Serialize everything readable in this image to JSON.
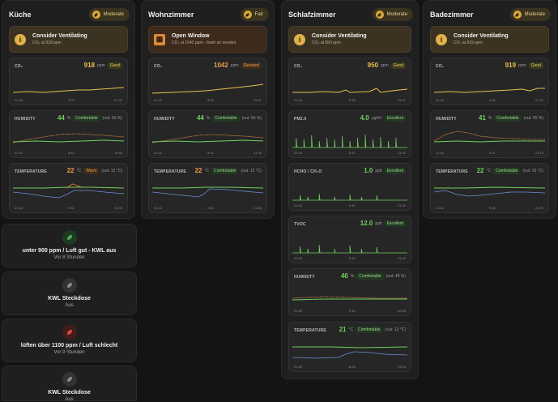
{
  "rooms": [
    {
      "name": "Küche",
      "badge": "Moderate",
      "alert": {
        "title": "Consider Ventilating",
        "sub": "CO₂ at 918 ppm"
      },
      "co2": {
        "label": "CO₂",
        "value": "918",
        "unit": "ppm",
        "status": "Good",
        "times": [
          "21:42",
          "9:39",
          "21:31"
        ]
      },
      "humidity": {
        "label": "HUMIDITY",
        "value": "44",
        "unit": "%",
        "status": "Comfortable",
        "out": "(out: 56 %)",
        "times": [
          "21:42",
          "8:14",
          "19:46"
        ]
      },
      "temperature": {
        "label": "TEMPERATURE",
        "value": "22",
        "unit": "°C",
        "status": "Warm",
        "out": "(out: 13 °C)",
        "times": [
          "21:42",
          "9:31",
          "21:39"
        ]
      }
    },
    {
      "name": "Wohnzimmer",
      "badge": "Fair",
      "alert": {
        "title": "Open Window",
        "sub": "CO₂ at 1042 ppm - fresh air needed"
      },
      "co2": {
        "label": "CO₂",
        "value": "1042",
        "unit": "ppm",
        "status": "Elevated",
        "times": [
          "21:42",
          "9:59",
          "21:37"
        ]
      },
      "humidity": {
        "label": "HUMIDITY",
        "value": "44",
        "unit": "%",
        "status": "Comfortable",
        "out": "(out: 56 %)",
        "times": [
          "21:42",
          "9:21",
          "21:39"
        ]
      },
      "temperature": {
        "label": "TEMPERATURE",
        "value": "22",
        "unit": "°C",
        "status": "Comfortable",
        "out": "(out: 13 °C)",
        "times": [
          "21:42",
          "9:53",
          "21:35"
        ]
      }
    },
    {
      "name": "Schlafzimmer",
      "badge": "Moderate",
      "alert": {
        "title": "Consider Ventilating",
        "sub": "CO₂ at 950 ppm"
      },
      "co2": {
        "label": "CO₂",
        "value": "950",
        "unit": "ppm",
        "status": "Good",
        "times": [
          "21:42",
          "9:39",
          "21:37"
        ]
      },
      "pm25": {
        "label": "PM2.5",
        "value": "4.0",
        "unit": "µg/m³",
        "status": "Excellent",
        "times": [
          "21:43",
          "9:42",
          "21:42"
        ]
      },
      "hcho": {
        "label": "HCHO / CH₂O",
        "value": "1.0",
        "unit": "ppb",
        "status": "Excellent",
        "times": [
          "21:42",
          "9:41",
          "21:41"
        ]
      },
      "tvoc": {
        "label": "TVOC",
        "value": "12.0",
        "unit": "ppb",
        "status": "Excellent",
        "times": [
          "21:42",
          "9:42",
          "21:42"
        ]
      },
      "humidity": {
        "label": "HUMIDITY",
        "value": "46",
        "unit": "%",
        "status": "Comfortable",
        "out": "(out: 48 %)",
        "times": [
          "21:42",
          "9:12",
          "20:43"
        ]
      },
      "temperature": {
        "label": "TEMPERATURE",
        "value": "21",
        "unit": "°C",
        "status": "Comfortable",
        "out": "(out: 12 °C)",
        "times": [
          "21:42",
          "8:25",
          "19:16"
        ]
      }
    },
    {
      "name": "Badezimmer",
      "badge": "Moderate",
      "alert": {
        "title": "Consider Ventilating",
        "sub": "CO₂ at 919 ppm"
      },
      "co2": {
        "label": "CO₂",
        "value": "919",
        "unit": "ppm",
        "status": "Good",
        "times": [
          "21:42",
          "9:39",
          "21:37"
        ]
      },
      "humidity": {
        "label": "HUMIDITY",
        "value": "41",
        "unit": "%",
        "status": "Comfortable",
        "out": "(out: 55 %)",
        "times": [
          "21:42",
          "9:21",
          "21:13"
        ]
      },
      "temperature": {
        "label": "TEMPERATURE",
        "value": "22",
        "unit": "°C",
        "status": "Comfortable",
        "out": "(out: 10 °C)",
        "times": [
          "21:42",
          "9:30",
          "21:37"
        ]
      }
    }
  ],
  "entities": [
    {
      "title": "unter 900 ppm / Luft gut - KWL aus",
      "sub": "Vor 8 Stunden",
      "icon": "leaf-icon",
      "color": "#4caf50"
    },
    {
      "title": "KWL Steckdose",
      "sub": "Aus",
      "icon": "leaf-icon",
      "color": "#5a5a5a"
    },
    {
      "title": "lüften über 1100 ppm / Luft schlecht",
      "sub": "Vor 9 Stunden",
      "icon": "leaf-icon",
      "color": "#c0392b"
    },
    {
      "title": "KWL Steckdose",
      "sub": "Aus",
      "icon": "leaf-icon",
      "color": "#5a5a5a"
    }
  ],
  "colors": {
    "co2": "#e8c24a",
    "humidity_out": "#d9863a",
    "inside": "#6fcf5f",
    "temp_out": "#6b8fd6",
    "accent": "#e0b24a"
  }
}
